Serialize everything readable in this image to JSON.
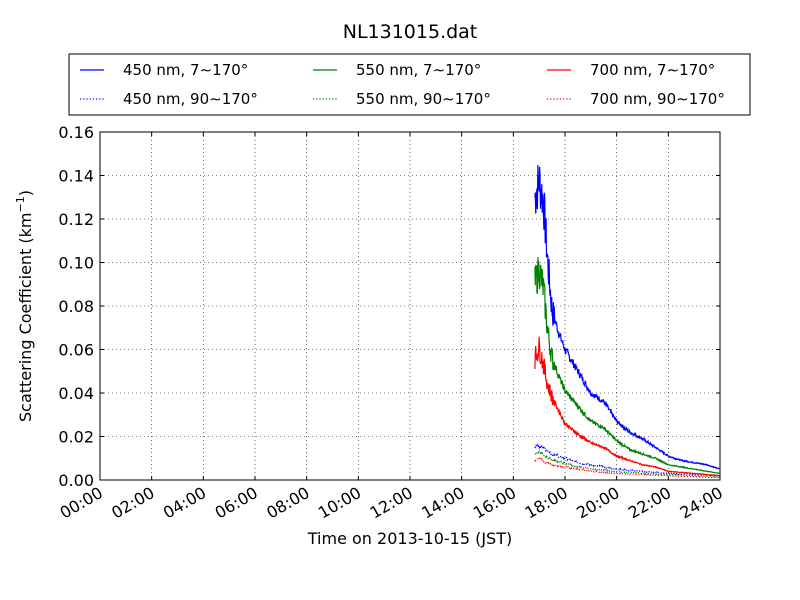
{
  "chart_data": {
    "type": "line",
    "title": "NL131015.dat",
    "xlabel": "Time on 2013-10-15 (JST)",
    "ylabel_main": "Scattering Coefficient (km",
    "ylabel_sup": "−1",
    "ylabel_tail": ")",
    "xlim": [
      "00:00",
      "24:00"
    ],
    "ylim": [
      0,
      0.16
    ],
    "grid": true,
    "grid_style": "dotted",
    "legend_position": "top",
    "legend_columns": 3,
    "x_tick_labels": [
      "00:00",
      "02:00",
      "04:00",
      "06:00",
      "08:00",
      "10:00",
      "12:00",
      "14:00",
      "16:00",
      "18:00",
      "20:00",
      "22:00",
      "24:00"
    ],
    "y_tick_labels": [
      "0.00",
      "0.02",
      "0.04",
      "0.06",
      "0.08",
      "0.10",
      "0.12",
      "0.14",
      "0.16"
    ],
    "series": [
      {
        "name": "450 nm, 7∼170°",
        "color": "#0000ff",
        "style": "solid",
        "points": [
          [
            "16:50",
            0.13
          ],
          [
            "17:00",
            0.138
          ],
          [
            "17:10",
            0.128
          ],
          [
            "17:20",
            0.1
          ],
          [
            "17:30",
            0.078
          ],
          [
            "17:45",
            0.068
          ],
          [
            "18:00",
            0.06
          ],
          [
            "18:30",
            0.05
          ],
          [
            "19:00",
            0.04
          ],
          [
            "19:30",
            0.036
          ],
          [
            "20:00",
            0.027
          ],
          [
            "20:30",
            0.022
          ],
          [
            "21:00",
            0.019
          ],
          [
            "21:30",
            0.015
          ],
          [
            "22:00",
            0.011
          ],
          [
            "22:30",
            0.009
          ],
          [
            "23:00",
            0.008
          ],
          [
            "23:30",
            0.007
          ],
          [
            "24:00",
            0.005
          ]
        ]
      },
      {
        "name": "450 nm, 90∼170°",
        "color": "#0000ff",
        "style": "dotted",
        "points": [
          [
            "16:50",
            0.015
          ],
          [
            "17:00",
            0.016
          ],
          [
            "17:15",
            0.014
          ],
          [
            "17:30",
            0.012
          ],
          [
            "18:00",
            0.01
          ],
          [
            "18:30",
            0.008
          ],
          [
            "19:00",
            0.007
          ],
          [
            "19:30",
            0.006
          ],
          [
            "20:00",
            0.005
          ],
          [
            "21:00",
            0.004
          ],
          [
            "22:00",
            0.003
          ],
          [
            "23:00",
            0.0025
          ],
          [
            "24:00",
            0.002
          ]
        ]
      },
      {
        "name": "550 nm, 7∼170°",
        "color": "#008000",
        "style": "solid",
        "points": [
          [
            "16:50",
            0.09
          ],
          [
            "17:00",
            0.097
          ],
          [
            "17:10",
            0.088
          ],
          [
            "17:20",
            0.068
          ],
          [
            "17:30",
            0.056
          ],
          [
            "17:45",
            0.048
          ],
          [
            "18:00",
            0.041
          ],
          [
            "18:30",
            0.034
          ],
          [
            "19:00",
            0.027
          ],
          [
            "19:30",
            0.024
          ],
          [
            "20:00",
            0.018
          ],
          [
            "20:30",
            0.014
          ],
          [
            "21:00",
            0.012
          ],
          [
            "21:30",
            0.01
          ],
          [
            "22:00",
            0.007
          ],
          [
            "22:30",
            0.006
          ],
          [
            "23:00",
            0.005
          ],
          [
            "23:30",
            0.004
          ],
          [
            "24:00",
            0.003
          ]
        ]
      },
      {
        "name": "550 nm, 90∼170°",
        "color": "#008000",
        "style": "dotted",
        "points": [
          [
            "16:50",
            0.012
          ],
          [
            "17:00",
            0.013
          ],
          [
            "17:15",
            0.011
          ],
          [
            "17:30",
            0.009
          ],
          [
            "18:00",
            0.008
          ],
          [
            "18:30",
            0.006
          ],
          [
            "19:00",
            0.005
          ],
          [
            "19:30",
            0.0045
          ],
          [
            "20:00",
            0.004
          ],
          [
            "21:00",
            0.003
          ],
          [
            "22:00",
            0.0025
          ],
          [
            "23:00",
            0.002
          ],
          [
            "24:00",
            0.0015
          ]
        ]
      },
      {
        "name": "700 nm, 7∼170°",
        "color": "#ff0000",
        "style": "solid",
        "points": [
          [
            "16:50",
            0.056
          ],
          [
            "17:00",
            0.061
          ],
          [
            "17:10",
            0.053
          ],
          [
            "17:20",
            0.044
          ],
          [
            "17:30",
            0.038
          ],
          [
            "17:45",
            0.032
          ],
          [
            "18:00",
            0.026
          ],
          [
            "18:30",
            0.021
          ],
          [
            "19:00",
            0.017
          ],
          [
            "19:30",
            0.015
          ],
          [
            "20:00",
            0.011
          ],
          [
            "20:30",
            0.009
          ],
          [
            "21:00",
            0.007
          ],
          [
            "21:30",
            0.006
          ],
          [
            "22:00",
            0.004
          ],
          [
            "22:30",
            0.0035
          ],
          [
            "23:00",
            0.003
          ],
          [
            "23:30",
            0.0025
          ],
          [
            "24:00",
            0.002
          ]
        ]
      },
      {
        "name": "700 nm, 90∼170°",
        "color": "#ff0000",
        "style": "dotted",
        "points": [
          [
            "16:50",
            0.009
          ],
          [
            "17:00",
            0.01
          ],
          [
            "17:15",
            0.008
          ],
          [
            "17:30",
            0.007
          ],
          [
            "18:00",
            0.006
          ],
          [
            "18:30",
            0.005
          ],
          [
            "19:00",
            0.004
          ],
          [
            "19:30",
            0.0035
          ],
          [
            "20:00",
            0.003
          ],
          [
            "21:00",
            0.0025
          ],
          [
            "22:00",
            0.002
          ],
          [
            "23:00",
            0.0015
          ],
          [
            "24:00",
            0.001
          ]
        ]
      }
    ]
  }
}
